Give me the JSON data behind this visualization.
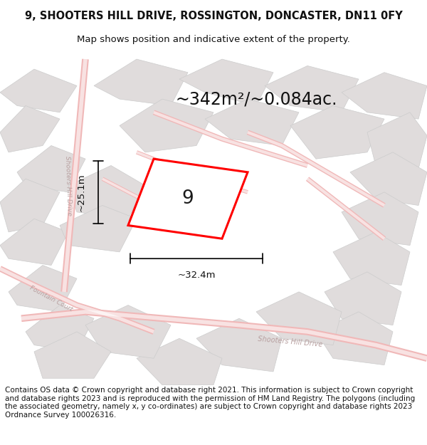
{
  "title_line1": "9, SHOOTERS HILL DRIVE, ROSSINGTON, DONCASTER, DN11 0FY",
  "title_line2": "Map shows position and indicative extent of the property.",
  "area_text": "~342m²/~0.084ac.",
  "width_label": "~32.4m",
  "height_label": "~25.1m",
  "number_label": "9",
  "footer_text": "Contains OS data © Crown copyright and database right 2021. This information is subject to Crown copyright and database rights 2023 and is reproduced with the permission of HM Land Registry. The polygons (including the associated geometry, namely x, y co-ordinates) are subject to Crown copyright and database rights 2023 Ordnance Survey 100026316.",
  "bg_color": "#ffffff",
  "map_bg": "#f2efef",
  "block_fill": "#e0dcdc",
  "block_edge": "#cccccc",
  "road_pink": "#f0b8b8",
  "road_white": "#ffffff",
  "plot_color": "#ff0000",
  "plot_fill": "#ffffff",
  "dim_color": "#000000",
  "text_color": "#111111",
  "road_label_color": "#b8a0a0",
  "title_fontsize": 10.5,
  "subtitle_fontsize": 9.5,
  "footer_fontsize": 7.5,
  "area_fontsize": 17,
  "num_fontsize": 19,
  "dim_fontsize": 9.5,
  "road_label_fontsize": 7
}
